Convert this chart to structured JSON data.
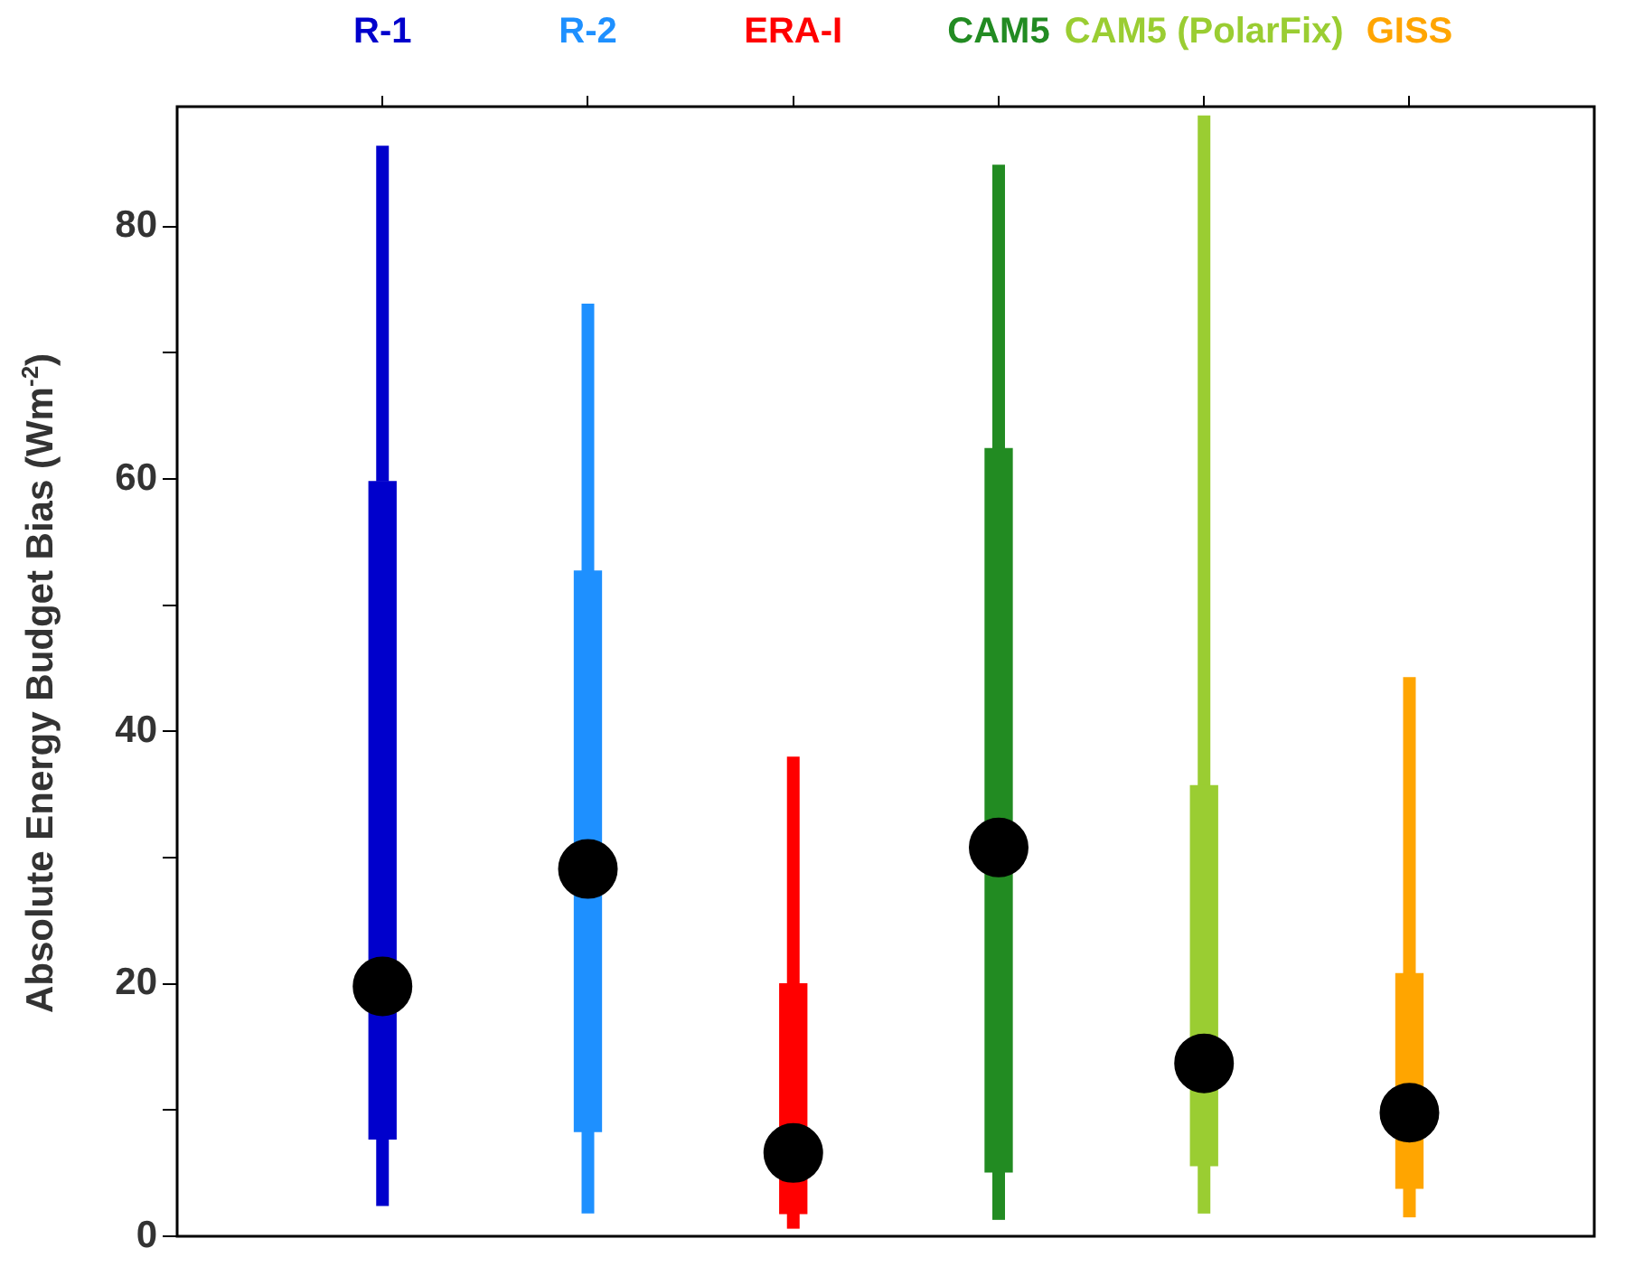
{
  "chart_data": {
    "type": "box",
    "ylabel": "Absolute Energy Budget Bias (Wm$^{-2}$)",
    "categories": [
      "R-1",
      "R-2",
      "ERA-I",
      "CAM5",
      "CAM5 (PolarFix)",
      "GISS"
    ],
    "colors": [
      "#0000cc",
      "#1e90ff",
      "#ff0000",
      "#228b22",
      "#9acd32",
      "#ffa500"
    ],
    "boxes": [
      {
        "low": 2.4,
        "q1": 7.7,
        "median": 19.8,
        "q3": 59.8,
        "high": 86.4
      },
      {
        "low": 1.8,
        "q1": 8.3,
        "median": 29.1,
        "q3": 52.7,
        "high": 73.9
      },
      {
        "low": 0.6,
        "q1": 1.8,
        "median": 6.6,
        "q3": 20.0,
        "high": 38.0
      },
      {
        "low": 1.3,
        "q1": 5.1,
        "median": 30.8,
        "q3": 62.4,
        "high": 84.9
      },
      {
        "low": 1.8,
        "q1": 5.6,
        "median": 13.7,
        "q3": 35.7,
        "high": 88.8
      },
      {
        "low": 1.5,
        "q1": 3.8,
        "median": 9.8,
        "q3": 20.8,
        "high": 44.3
      }
    ],
    "marker": "circle",
    "ylim": [
      0,
      89.5
    ],
    "yticks": [
      0,
      {
        "value": 10,
        "label": null
      },
      20,
      {
        "value": 30,
        "label": null
      },
      40,
      {
        "value": 50,
        "label": null
      },
      60,
      {
        "value": 70,
        "label": null
      },
      80
    ],
    "grid": false,
    "legend": false
  }
}
